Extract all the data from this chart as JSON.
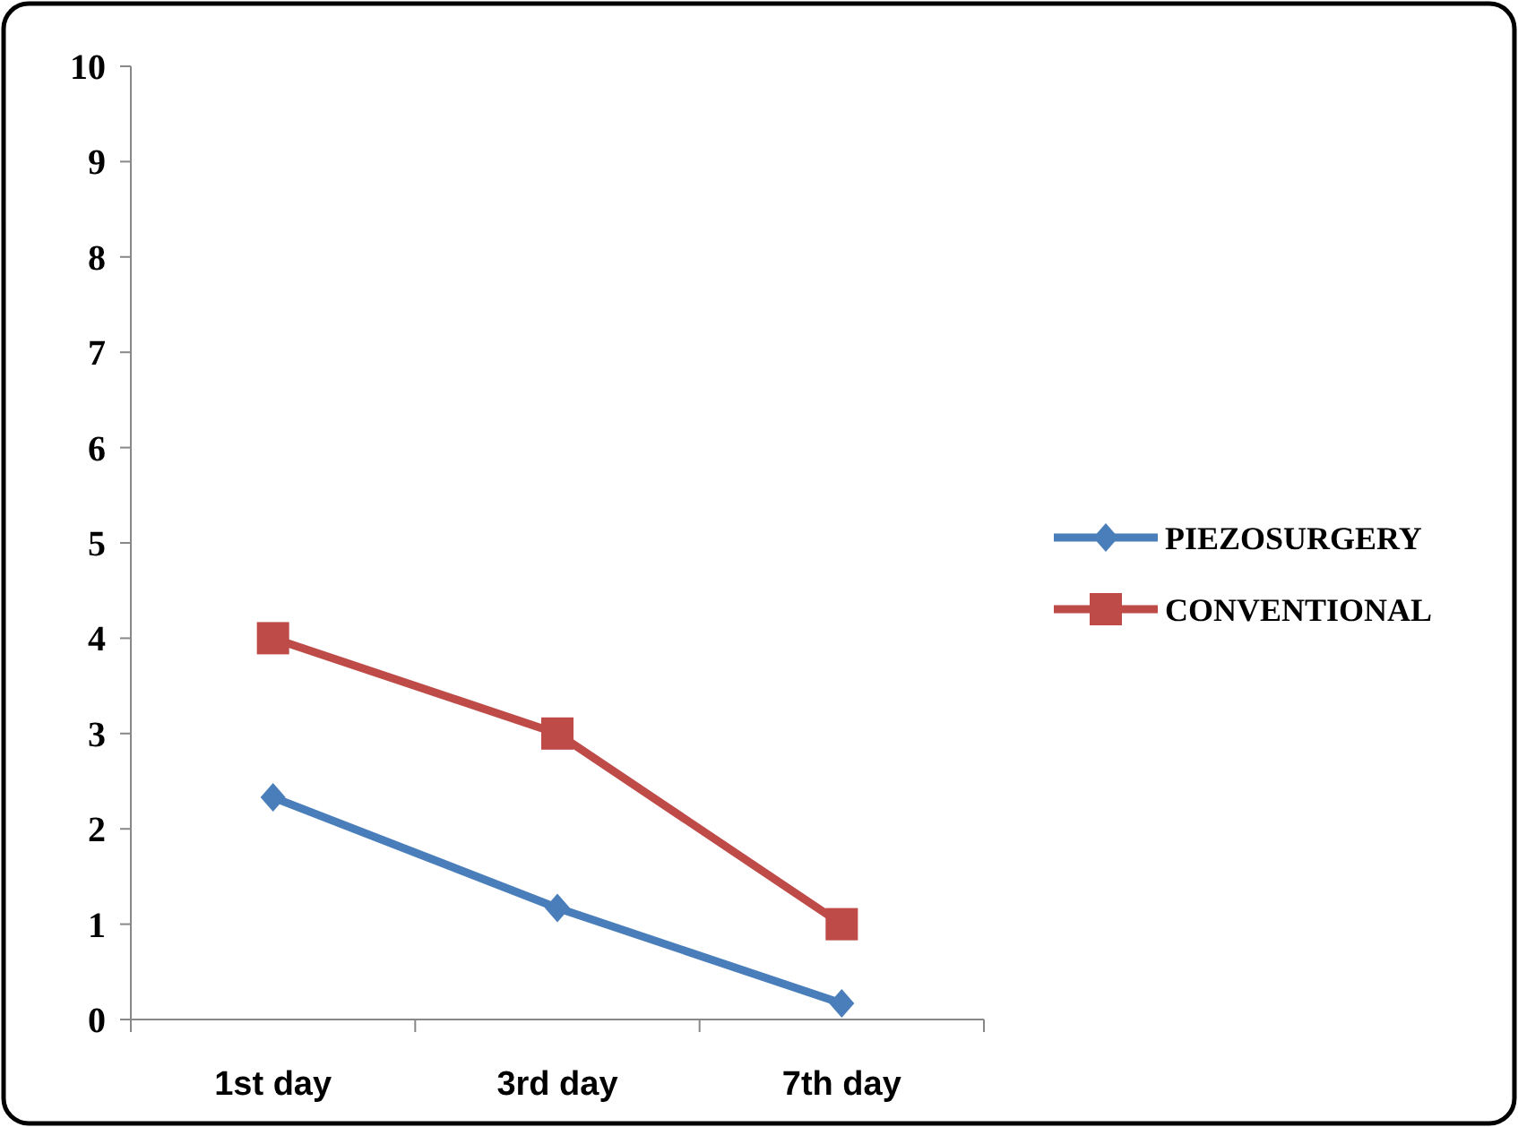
{
  "chart_data": {
    "type": "line",
    "categories": [
      "1st day",
      "3rd day",
      "7th day"
    ],
    "series": [
      {
        "name": "PIEZOSURGERY",
        "color": "#4a7ebb",
        "values": [
          2.33,
          1.17,
          0.17
        ],
        "marker": "diamond"
      },
      {
        "name": "CONVENTIONAL",
        "color": "#be4b48",
        "values": [
          4,
          3,
          1
        ],
        "marker": "square"
      }
    ],
    "ylim": [
      0,
      10
    ],
    "yticks": [
      0,
      1,
      2,
      3,
      4,
      5,
      6,
      7,
      8,
      9,
      10
    ],
    "grid": false,
    "legend": "right"
  }
}
